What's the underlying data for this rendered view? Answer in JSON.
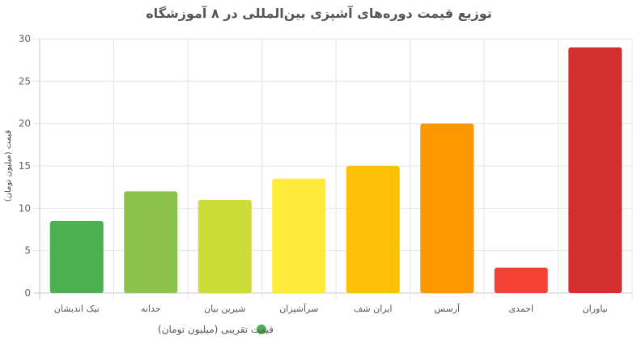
{
  "chart_data": {
    "type": "bar",
    "title": "توزیع قیمت دوره‌های آشپزی بین‌المللی در ۸ آموزشگاه",
    "ylabel": "قیمت (میلیون تومان)",
    "xlabel": "",
    "ylim": [
      0,
      30
    ],
    "yticks": [
      0,
      5,
      10,
      15,
      20,
      25,
      30
    ],
    "grid": true,
    "legend_position": "bottom",
    "categories": [
      "نیک اندیشان",
      "حدانه",
      "شیرین بیان",
      "سرآشپزان",
      "ایران شف",
      "آرسس",
      "احمدی",
      "نیاوران"
    ],
    "series": [
      {
        "name": "قیمت تقریبی (میلیون تومان)",
        "values": [
          8.5,
          12,
          11,
          13.5,
          15,
          20,
          3,
          29
        ],
        "colors": [
          "#4caf50",
          "#8bc34a",
          "#cddc39",
          "#ffeb3b",
          "#ffc107",
          "#ff9800",
          "#f44336",
          "#d32f2f"
        ]
      }
    ]
  }
}
